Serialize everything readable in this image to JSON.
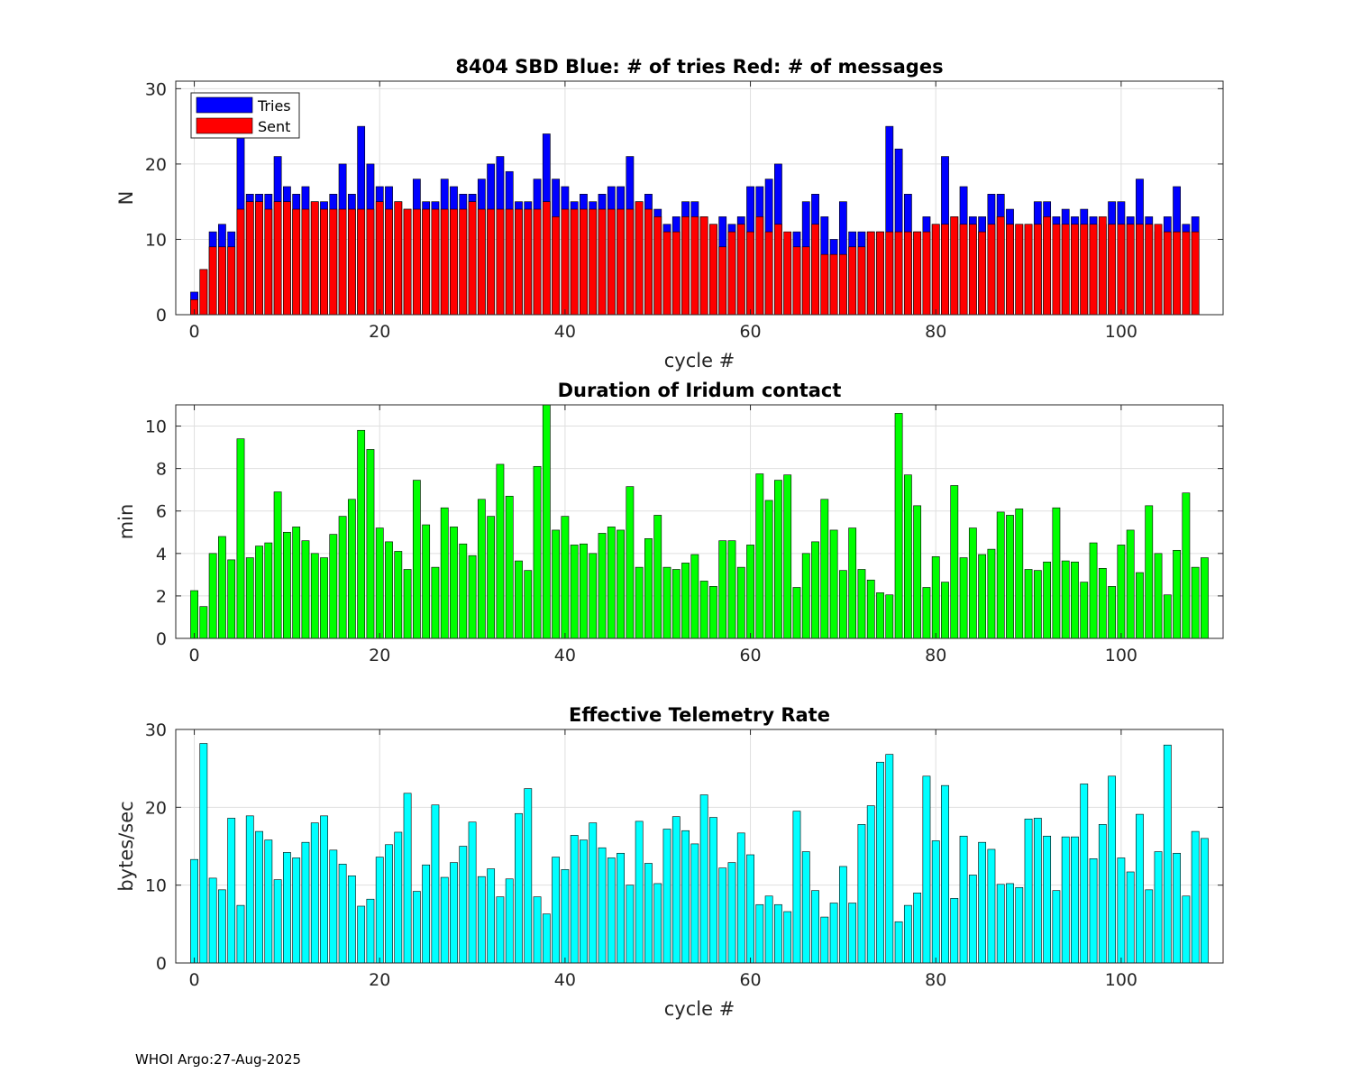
{
  "footer": "WHOI Argo:27-Aug-2025",
  "chart_data": [
    {
      "type": "bar",
      "title": "8404 SBD  Blue: # of tries   Red: # of messages",
      "xlabel": "cycle #",
      "ylabel": "N",
      "xlim": [
        -2,
        111
      ],
      "ylim": [
        0,
        31
      ],
      "xticks": [
        0,
        20,
        40,
        60,
        80,
        100
      ],
      "yticks": [
        0,
        10,
        20,
        30
      ],
      "grid": true,
      "legend_position": "top-left",
      "legend": [
        "Tries",
        "Sent"
      ],
      "colors": {
        "Tries": "#0000ff",
        "Sent": "#ff0000"
      },
      "x_start": 0,
      "series": [
        {
          "name": "Tries",
          "values": [
            3,
            6,
            11,
            12,
            11,
            24,
            16,
            16,
            16,
            21,
            17,
            16,
            17,
            15,
            15,
            16,
            20,
            16,
            25,
            20,
            17,
            17,
            15,
            14,
            18,
            15,
            15,
            18,
            17,
            16,
            16,
            18,
            20,
            21,
            19,
            15,
            15,
            18,
            24,
            18,
            17,
            15,
            16,
            15,
            16,
            17,
            17,
            21,
            15,
            16,
            14,
            12,
            13,
            15,
            15,
            13,
            12,
            13,
            12,
            13,
            17,
            17,
            18,
            20,
            10,
            11,
            15,
            16,
            13,
            10,
            15,
            11,
            11,
            11,
            11,
            25,
            22,
            16,
            11,
            13,
            12,
            21,
            13,
            17,
            13,
            13,
            16,
            16,
            14,
            12,
            12,
            15,
            15,
            13,
            14,
            13,
            14,
            13,
            12,
            15,
            15,
            13,
            18,
            13,
            11,
            13,
            17,
            12,
            13
          ]
        },
        {
          "name": "Sent",
          "values": [
            2,
            6,
            9,
            9,
            9,
            14,
            15,
            15,
            14,
            15,
            15,
            14,
            14,
            15,
            14,
            14,
            14,
            14,
            14,
            14,
            15,
            14,
            15,
            14,
            14,
            14,
            14,
            14,
            14,
            14,
            15,
            14,
            14,
            14,
            14,
            14,
            14,
            14,
            15,
            13,
            14,
            14,
            14,
            14,
            14,
            14,
            14,
            14,
            15,
            14,
            13,
            11,
            11,
            13,
            13,
            13,
            12,
            9,
            11,
            12,
            11,
            13,
            11,
            12,
            11,
            9,
            9,
            12,
            8,
            8,
            8,
            9,
            9,
            11,
            11,
            11,
            11,
            11,
            11,
            11,
            12,
            12,
            13,
            12,
            12,
            11,
            12,
            13,
            12,
            12,
            12,
            12,
            13,
            12,
            12,
            12,
            12,
            12,
            13,
            12,
            12,
            12,
            12,
            12,
            12,
            11,
            11,
            11,
            11
          ]
        }
      ]
    },
    {
      "type": "bar",
      "title": "Duration of Iridum contact",
      "xlabel": "",
      "ylabel": "min",
      "xlim": [
        -2,
        111
      ],
      "ylim": [
        0,
        11
      ],
      "xticks": [
        0,
        20,
        40,
        60,
        80,
        100
      ],
      "yticks": [
        0,
        2,
        4,
        6,
        8,
        10
      ],
      "grid": true,
      "colors": {
        "bars": "#00ff00"
      },
      "x_start": 0,
      "series": [
        {
          "name": "Duration",
          "values": [
            2.25,
            1.5,
            4,
            4.8,
            3.7,
            9.4,
            3.8,
            4.35,
            4.5,
            6.9,
            5,
            5.25,
            4.6,
            4,
            3.8,
            4.9,
            5.75,
            6.55,
            9.8,
            8.9,
            5.2,
            4.55,
            4.1,
            3.25,
            7.45,
            5.35,
            3.35,
            6.15,
            5.25,
            4.45,
            3.9,
            6.55,
            5.75,
            8.2,
            6.7,
            3.65,
            3.2,
            8.1,
            11,
            5.1,
            5.75,
            4.4,
            4.45,
            4,
            4.95,
            5.25,
            5.1,
            7.15,
            3.35,
            4.7,
            5.8,
            3.35,
            3.25,
            3.55,
            3.95,
            2.7,
            2.45,
            4.6,
            4.6,
            3.35,
            4.4,
            7.75,
            6.5,
            7.45,
            7.7,
            2.4,
            4,
            4.55,
            6.55,
            5.1,
            3.2,
            5.2,
            3.25,
            2.75,
            2.15,
            2.05,
            10.6,
            7.7,
            6.25,
            2.4,
            3.85,
            2.65,
            7.2,
            3.8,
            5.2,
            3.95,
            4.2,
            5.95,
            5.8,
            6.1,
            3.25,
            3.2,
            3.6,
            6.15,
            3.65,
            3.6,
            2.65,
            4.5,
            3.3,
            2.45,
            4.4,
            5.1,
            3.1,
            6.25,
            4,
            2.05,
            4.15,
            6.85,
            3.35,
            3.8
          ]
        }
      ]
    },
    {
      "type": "bar",
      "title": "Effective Telemetry Rate",
      "xlabel": "cycle #",
      "ylabel": "bytes/sec",
      "xlim": [
        -2,
        111
      ],
      "ylim": [
        0,
        30
      ],
      "xticks": [
        0,
        20,
        40,
        60,
        80,
        100
      ],
      "yticks": [
        0,
        10,
        20,
        30
      ],
      "grid": true,
      "colors": {
        "bars": "#00ffff"
      },
      "x_start": 0,
      "series": [
        {
          "name": "Rate",
          "values": [
            13.3,
            28.2,
            10.9,
            9.4,
            18.6,
            7.4,
            18.9,
            16.9,
            15.8,
            10.7,
            14.2,
            13.5,
            15.5,
            18,
            18.9,
            14.5,
            12.7,
            11.2,
            7.3,
            8.2,
            13.6,
            15.2,
            16.8,
            21.8,
            9.2,
            12.6,
            20.3,
            11,
            12.9,
            15,
            18.1,
            11.1,
            12.1,
            8.5,
            10.8,
            19.2,
            22.4,
            8.5,
            6.3,
            13.6,
            12,
            16.4,
            15.8,
            18,
            14.8,
            13.5,
            14.1,
            10,
            18.2,
            12.8,
            10.2,
            17.2,
            18.8,
            17,
            15.3,
            21.6,
            18.7,
            12.2,
            12.9,
            16.7,
            13.9,
            7.5,
            8.6,
            7.5,
            6.6,
            19.5,
            14.3,
            9.3,
            5.9,
            7.7,
            12.4,
            7.7,
            17.8,
            20.2,
            25.8,
            26.8,
            5.3,
            7.4,
            9,
            24,
            15.7,
            22.8,
            8.3,
            16.3,
            11.3,
            15.5,
            14.6,
            10.1,
            10.2,
            9.7,
            18.5,
            18.6,
            16.3,
            9.3,
            16.2,
            16.2,
            23,
            13.4,
            17.8,
            24,
            13.5,
            11.7,
            19.1,
            9.4,
            14.3,
            28,
            14.1,
            8.6,
            16.9,
            16
          ]
        }
      ]
    }
  ]
}
